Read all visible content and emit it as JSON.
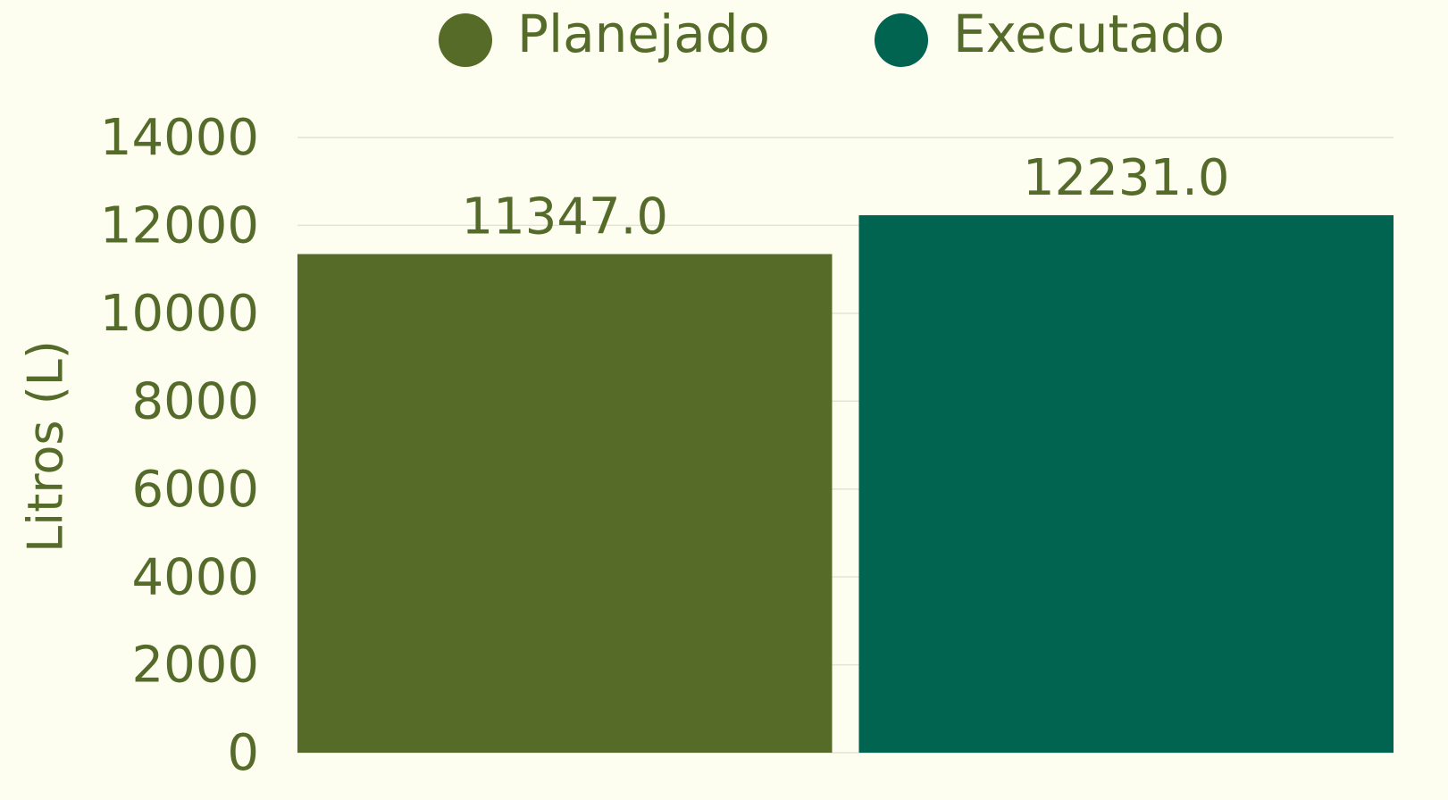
{
  "chart_data": {
    "type": "bar",
    "y_label": "Litros (L)",
    "categories": [
      null
    ],
    "series": [
      {
        "name": "Planejado",
        "color": "#556b27",
        "values": [
          11347
        ],
        "value_labels": [
          "11347.0"
        ]
      },
      {
        "name": "Executado",
        "color": "#006450",
        "values": [
          12231
        ],
        "value_labels": [
          "12231.0"
        ]
      }
    ],
    "ylim": [
      0,
      14000
    ],
    "yticks": [
      0,
      2000,
      4000,
      6000,
      8000,
      10000,
      12000,
      14000
    ],
    "grid": true,
    "legend": "top"
  }
}
